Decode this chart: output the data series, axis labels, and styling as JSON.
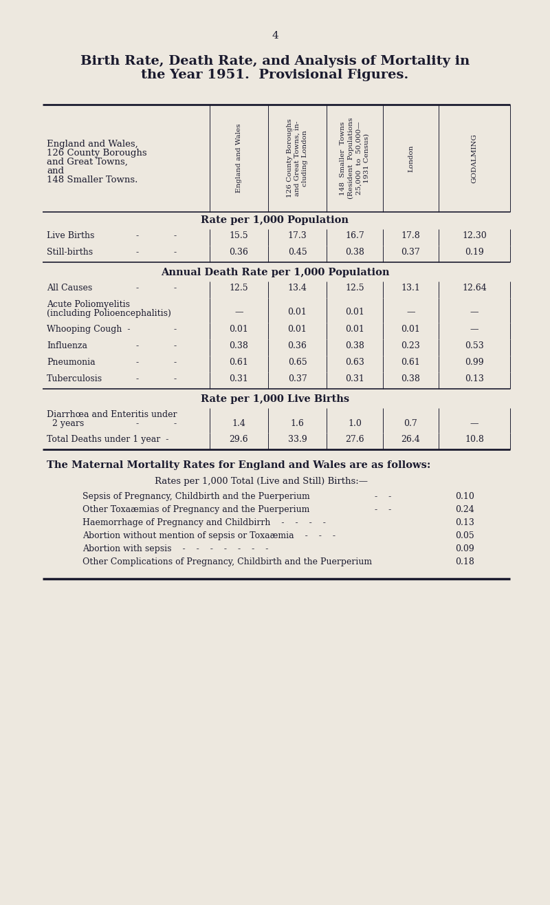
{
  "bg_color": "#ede8df",
  "text_color": "#1a1a2e",
  "page_number": "4",
  "title_line1": "Birth Rate, Death Rate, and Analysis of Mortality in",
  "title_line2": "the Year 1951.  Provisional Figures.",
  "col_headers_rotated": [
    "England and Wales",
    "126 County Boroughs\nand Great Towns, in-\ncluding London",
    "148  Smaller  Towns\n(Resident  Populations\n25,000  to  50,000—\n1931 Census)",
    "London",
    "GODALMING"
  ],
  "row_header_block_lines": [
    "England and Wales,",
    "126 County Boroughs",
    "and Great Towns,",
    "and",
    "148 Smaller Towns."
  ],
  "section1_title": "Rate per 1,000 Population",
  "section2_title": "Annual Death Rate per 1,000 Population",
  "section3_title": "Rate per 1,000 Live Births",
  "maternal_title": "The Maternal Mortality Rates for England and Wales are as follows:",
  "maternal_subtitle": "Rates per 1,000 Total (Live and Still) Births:—",
  "maternal_rows": [
    [
      "Sepsis of Pregnancy, Childbirth and the Puerperium",
      "-    -",
      "0.10"
    ],
    [
      "Other Toxaæmias of Pregnancy and the Puerperium",
      "-    -",
      "0.24"
    ],
    [
      "Haemorrhage of Pregnancy and Childbirrh    -    -    -    -",
      "",
      "0.13"
    ],
    [
      "Abortion without mention of sepsis or Toxaæmia    -    -    -",
      "",
      "0.05"
    ],
    [
      "Abortion with sepsis    -    -    -    -    -    -    -",
      "",
      "0.09"
    ],
    [
      "Other Complications of Pregnancy, Childbirth and the Puerperium",
      "",
      "0.18"
    ]
  ]
}
